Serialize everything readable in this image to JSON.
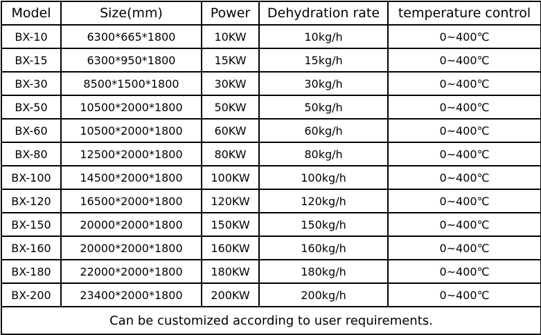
{
  "headers": [
    "Model",
    "Size(mm)",
    "Power",
    "Dehydration rate",
    "temperature control"
  ],
  "rows": [
    [
      "BX-10",
      "6300*665*1800",
      "10KW",
      "10kg/h",
      "0~400℃"
    ],
    [
      "BX-15",
      "6300*950*1800",
      "15KW",
      "15kg/h",
      "0~400℃"
    ],
    [
      "BX-30",
      "8500*1500*1800",
      "30KW",
      "30kg/h",
      "0~400℃"
    ],
    [
      "BX-50",
      "10500*2000*1800",
      "50KW",
      "50kg/h",
      "0~400℃"
    ],
    [
      "BX-60",
      "10500*2000*1800",
      "60KW",
      "60kg/h",
      "0~400℃"
    ],
    [
      "BX-80",
      "12500*2000*1800",
      "80KW",
      "80kg/h",
      "0~400℃"
    ],
    [
      "BX-100",
      "14500*2000*1800",
      "100KW",
      "100kg/h",
      "0~400℃"
    ],
    [
      "BX-120",
      "16500*2000*1800",
      "120KW",
      "120kg/h",
      "0~400℃"
    ],
    [
      "BX-150",
      "20000*2000*1800",
      "150KW",
      "150kg/h",
      "0~400℃"
    ],
    [
      "BX-160",
      "20000*2000*1800",
      "160KW",
      "160kg/h",
      "0~400℃"
    ],
    [
      "BX-180",
      "22000*2000*1800",
      "180KW",
      "180kg/h",
      "0~400℃"
    ],
    [
      "BX-200",
      "23400*2000*1800",
      "200KW",
      "200kg/h",
      "0~400℃"
    ]
  ],
  "note": "Can be customized according to user requirements."
}
